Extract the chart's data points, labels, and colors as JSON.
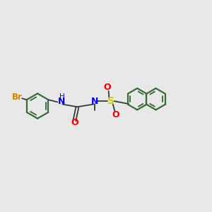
{
  "background_color": "#e8e8e8",
  "bond_color": "#3a3a3a",
  "Br_color": "#cc8800",
  "N_color": "#0000ee",
  "O_color": "#ee0000",
  "S_color": "#cccc00",
  "ring_color": "#3a6b3a",
  "figsize": [
    3.0,
    3.0
  ],
  "dpi": 100,
  "xlim": [
    0,
    12
  ],
  "ylim": [
    0,
    10
  ],
  "scale": 1.0,
  "ring_r": 0.72,
  "naph_r": 0.62
}
